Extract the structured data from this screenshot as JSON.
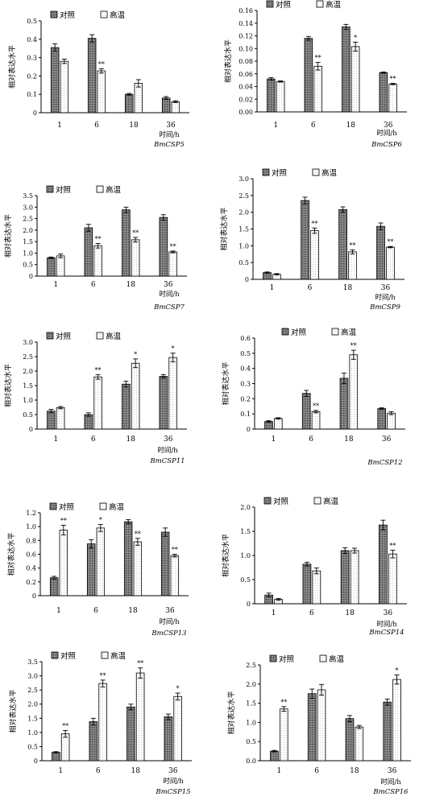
{
  "colors": {
    "control": "#6a6a6a",
    "heat": "#f4f4f4",
    "axis": "#000000",
    "error": "#000000"
  },
  "chart_data": [
    {
      "type": "bar",
      "title": "BmCSP5",
      "ylabel": "相对表达水平",
      "xlabel": "时间/h",
      "categories": [
        "1",
        "6",
        "18",
        "36"
      ],
      "ylim": [
        0,
        0.5
      ],
      "yticks": [
        "0",
        "0.1",
        "0.2",
        "0.3",
        "0.4",
        "0.5"
      ],
      "yticks_v": [
        0,
        0.1,
        0.2,
        0.3,
        0.4,
        0.5
      ],
      "legend": "top-left",
      "series": [
        {
          "name": "对照",
          "values": [
            0.355,
            0.405,
            0.1,
            0.08
          ],
          "errors": [
            0.02,
            0.02,
            0.005,
            0.008
          ],
          "marks": [
            "",
            "",
            "",
            ""
          ]
        },
        {
          "name": "高温",
          "values": [
            0.28,
            0.228,
            0.16,
            0.06
          ],
          "errors": [
            0.012,
            0.012,
            0.02,
            0.005
          ],
          "marks": [
            "",
            "**",
            "",
            ""
          ]
        }
      ]
    },
    {
      "type": "bar",
      "title": "BmCSP6",
      "ylabel": "相对表达水平",
      "xlabel": "时间/h",
      "categories": [
        "1",
        "6",
        "18",
        "36"
      ],
      "ylim": [
        0,
        0.16
      ],
      "yticks": [
        "0.00",
        "0.02",
        "0.04",
        "0.06",
        "0.08",
        "0.10",
        "0.12",
        "0.14",
        "0.16"
      ],
      "yticks_v": [
        0,
        0.02,
        0.04,
        0.06,
        0.08,
        0.1,
        0.12,
        0.14,
        0.16
      ],
      "legend": "top-left",
      "series": [
        {
          "name": "对照",
          "values": [
            0.052,
            0.116,
            0.134,
            0.062
          ],
          "errors": [
            0.002,
            0.003,
            0.004,
            0.001
          ],
          "marks": [
            "",
            "",
            "",
            ""
          ]
        },
        {
          "name": "高温",
          "values": [
            0.048,
            0.072,
            0.103,
            0.044
          ],
          "errors": [
            0.001,
            0.006,
            0.007,
            0.001
          ],
          "marks": [
            "",
            "**",
            "*",
            "**"
          ]
        }
      ]
    },
    {
      "type": "bar",
      "title": "BmCSP7",
      "ylabel": "相对表达水平",
      "xlabel": "时间/h",
      "categories": [
        "1",
        "6",
        "18",
        "36"
      ],
      "ylim": [
        0,
        3.5
      ],
      "yticks": [
        "0",
        "0.5",
        "1.0",
        "1.5",
        "2.0",
        "2.5",
        "3.0",
        "3.5"
      ],
      "yticks_v": [
        0,
        0.5,
        1,
        1.5,
        2,
        2.5,
        3,
        3.5
      ],
      "legend": "top-left",
      "series": [
        {
          "name": "对照",
          "values": [
            0.8,
            2.1,
            2.88,
            2.55
          ],
          "errors": [
            0.03,
            0.15,
            0.12,
            0.12
          ],
          "marks": [
            "",
            "",
            "",
            ""
          ]
        },
        {
          "name": "高温",
          "values": [
            0.88,
            1.32,
            1.58,
            1.05
          ],
          "errors": [
            0.08,
            0.1,
            0.1,
            0.04
          ],
          "marks": [
            "",
            "**",
            "**",
            "**"
          ]
        }
      ]
    },
    {
      "type": "bar",
      "title": "BmCSP9",
      "ylabel": "相对表达水平",
      "xlabel": "时间/h",
      "categories": [
        "1",
        "6",
        "18",
        "36"
      ],
      "ylim": [
        0,
        3.0
      ],
      "yticks": [
        "0",
        "0.5",
        "1.0",
        "1.5",
        "2.0",
        "2.5",
        "3.0"
      ],
      "yticks_v": [
        0,
        0.5,
        1,
        1.5,
        2,
        2.5,
        3
      ],
      "legend": "top-left",
      "series": [
        {
          "name": "对照",
          "values": [
            0.2,
            2.35,
            2.08,
            1.58
          ],
          "errors": [
            0.02,
            0.1,
            0.08,
            0.1
          ],
          "marks": [
            "",
            "",
            "",
            ""
          ]
        },
        {
          "name": "高温",
          "values": [
            0.15,
            1.45,
            0.82,
            0.96
          ],
          "errors": [
            0.02,
            0.08,
            0.06,
            0.02
          ],
          "marks": [
            "",
            "**",
            "**",
            "**"
          ]
        }
      ]
    },
    {
      "type": "bar",
      "title": "BmCSP11",
      "ylabel": "相对表达水平",
      "xlabel": "时间/h",
      "categories": [
        "1",
        "6",
        "18",
        "36"
      ],
      "ylim": [
        0,
        3.0
      ],
      "yticks": [
        "0",
        "0.5",
        "1.0",
        "1.5",
        "2.0",
        "2.5",
        "3.0"
      ],
      "yticks_v": [
        0,
        0.5,
        1,
        1.5,
        2,
        2.5,
        3
      ],
      "legend": "top-left",
      "series": [
        {
          "name": "对照",
          "values": [
            0.62,
            0.5,
            1.55,
            1.82
          ],
          "errors": [
            0.06,
            0.06,
            0.1,
            0.06
          ],
          "marks": [
            "",
            "",
            "",
            ""
          ]
        },
        {
          "name": "高温",
          "values": [
            0.74,
            1.8,
            2.27,
            2.47
          ],
          "errors": [
            0.04,
            0.08,
            0.15,
            0.15
          ],
          "marks": [
            "",
            "**",
            "*",
            "*"
          ]
        }
      ]
    },
    {
      "type": "bar",
      "title": "BmCSP12",
      "ylabel": "相对表达水平",
      "xlabel": "",
      "categories": [
        "1",
        "6",
        "18",
        "36"
      ],
      "ylim": [
        0,
        0.6
      ],
      "yticks": [
        "0",
        "0.1",
        "0.2",
        "0.3",
        "0.4",
        "0.5",
        "0.6"
      ],
      "yticks_v": [
        0,
        0.1,
        0.2,
        0.3,
        0.4,
        0.5,
        0.6
      ],
      "legend": "top-center",
      "series": [
        {
          "name": "对照",
          "values": [
            0.05,
            0.235,
            0.335,
            0.135
          ],
          "errors": [
            0.005,
            0.02,
            0.035,
            0.005
          ],
          "marks": [
            "",
            "",
            "",
            ""
          ]
        },
        {
          "name": "高温",
          "values": [
            0.07,
            0.115,
            0.49,
            0.105
          ],
          "errors": [
            0.005,
            0.008,
            0.03,
            0.01
          ],
          "marks": [
            "",
            "**",
            "**",
            ""
          ]
        }
      ]
    },
    {
      "type": "bar",
      "title": "BmCSP13",
      "ylabel": "相对表达水平",
      "xlabel": "时间/h",
      "categories": [
        "1",
        "6",
        "18",
        "36"
      ],
      "ylim": [
        0,
        1.2
      ],
      "yticks": [
        "0",
        "0.2",
        "0.4",
        "0.6",
        "0.8",
        "1.0",
        "1.2"
      ],
      "yticks_v": [
        0,
        0.2,
        0.4,
        0.6,
        0.8,
        1,
        1.2
      ],
      "legend": "top-left",
      "series": [
        {
          "name": "对照",
          "values": [
            0.26,
            0.75,
            1.07,
            0.92
          ],
          "errors": [
            0.02,
            0.06,
            0.03,
            0.06
          ],
          "marks": [
            "",
            "",
            "",
            ""
          ]
        },
        {
          "name": "高温",
          "values": [
            0.95,
            0.98,
            0.78,
            0.58
          ],
          "errors": [
            0.07,
            0.05,
            0.05,
            0.02
          ],
          "marks": [
            "**",
            "*",
            "**",
            "**"
          ]
        }
      ]
    },
    {
      "type": "bar",
      "title": "BmCSP14",
      "ylabel": "相对表达水平",
      "xlabel": "时间/h",
      "categories": [
        "1",
        "6",
        "18",
        "36"
      ],
      "ylim": [
        0,
        2.0
      ],
      "yticks": [
        "0",
        "0.5",
        "1.0",
        "1.5",
        "2.0"
      ],
      "yticks_v": [
        0,
        0.5,
        1,
        1.5,
        2
      ],
      "legend": "top-left",
      "series": [
        {
          "name": "对照",
          "values": [
            0.18,
            0.82,
            1.1,
            1.63
          ],
          "errors": [
            0.04,
            0.04,
            0.06,
            0.1
          ],
          "marks": [
            "",
            "",
            "",
            ""
          ]
        },
        {
          "name": "高温",
          "values": [
            0.09,
            0.68,
            1.1,
            1.03
          ],
          "errors": [
            0.02,
            0.06,
            0.05,
            0.08
          ],
          "marks": [
            "",
            "",
            "",
            "**"
          ]
        }
      ]
    },
    {
      "type": "bar",
      "title": "BmCSP15",
      "ylabel": "相对表达水平",
      "xlabel": "时间/h",
      "categories": [
        "1",
        "6",
        "18",
        "36"
      ],
      "ylim": [
        0,
        3.5
      ],
      "yticks": [
        "0",
        "0.5",
        "1.0",
        "1.5",
        "2.0",
        "2.5",
        "3.0",
        "3.5"
      ],
      "yticks_v": [
        0,
        0.5,
        1,
        1.5,
        2,
        2.5,
        3,
        3.5
      ],
      "legend": "top-left",
      "series": [
        {
          "name": "对照",
          "values": [
            0.3,
            1.38,
            1.9,
            1.55
          ],
          "errors": [
            0.02,
            0.12,
            0.1,
            0.1
          ],
          "marks": [
            "",
            "",
            "",
            ""
          ]
        },
        {
          "name": "高温",
          "values": [
            0.95,
            2.73,
            3.1,
            2.27
          ],
          "errors": [
            0.12,
            0.12,
            0.18,
            0.12
          ],
          "marks": [
            "**",
            "**",
            "**",
            "*"
          ]
        }
      ]
    },
    {
      "type": "bar",
      "title": "BmCSP16",
      "ylabel": "相对表达水平",
      "xlabel": "时间/h",
      "categories": [
        "1",
        "6",
        "18",
        "36"
      ],
      "ylim": [
        0,
        2.5
      ],
      "yticks": [
        "0.0",
        "0.5",
        "1.0",
        "1.5",
        "2.0",
        "2.5"
      ],
      "yticks_v": [
        0,
        0.5,
        1,
        1.5,
        2,
        2.5
      ],
      "legend": "top-left",
      "series": [
        {
          "name": "对照",
          "values": [
            0.25,
            1.75,
            1.1,
            1.53
          ],
          "errors": [
            0.02,
            0.12,
            0.08,
            0.08
          ],
          "marks": [
            "",
            "",
            "",
            ""
          ]
        },
        {
          "name": "高温",
          "values": [
            1.35,
            1.85,
            0.88,
            2.12
          ],
          "errors": [
            0.06,
            0.14,
            0.04,
            0.12
          ],
          "marks": [
            "**",
            "",
            "",
            "*"
          ]
        }
      ]
    }
  ]
}
